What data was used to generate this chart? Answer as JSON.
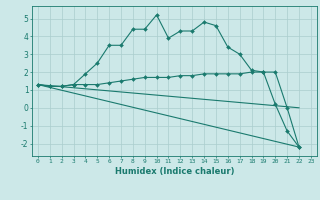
{
  "xlabel": "Humidex (Indice chaleur)",
  "bg_color": "#cce8e8",
  "grid_color": "#aacece",
  "line_color": "#1a7a6e",
  "xlim": [
    -0.5,
    23.5
  ],
  "ylim": [
    -2.7,
    5.7
  ],
  "yticks": [
    -2,
    -1,
    0,
    1,
    2,
    3,
    4,
    5
  ],
  "xticks": [
    0,
    1,
    2,
    3,
    4,
    5,
    6,
    7,
    8,
    9,
    10,
    11,
    12,
    13,
    14,
    15,
    16,
    17,
    18,
    19,
    20,
    21,
    22,
    23
  ],
  "lines": [
    {
      "x": [
        0,
        1,
        2,
        3,
        4,
        5,
        6,
        7,
        8,
        9,
        10,
        11,
        12,
        13,
        14,
        15,
        16,
        17,
        18,
        19,
        20,
        21,
        22
      ],
      "y": [
        1.3,
        1.2,
        1.2,
        1.3,
        1.9,
        2.5,
        3.5,
        3.5,
        4.4,
        4.4,
        5.2,
        3.9,
        4.3,
        4.3,
        4.8,
        4.6,
        3.4,
        3.0,
        2.1,
        2.0,
        0.2,
        -1.3,
        -2.2
      ],
      "markers": true
    },
    {
      "x": [
        0,
        1,
        2,
        3,
        4,
        5,
        6,
        7,
        8,
        9,
        10,
        11,
        12,
        13,
        14,
        15,
        16,
        17,
        18,
        19,
        20,
        21,
        22
      ],
      "y": [
        1.3,
        1.2,
        1.2,
        1.3,
        1.3,
        1.3,
        1.4,
        1.5,
        1.6,
        1.7,
        1.7,
        1.7,
        1.8,
        1.8,
        1.9,
        1.9,
        1.9,
        1.9,
        2.0,
        2.0,
        2.0,
        0.0,
        -2.2
      ],
      "markers": true
    },
    {
      "x": [
        0,
        22
      ],
      "y": [
        1.3,
        -2.2
      ],
      "markers": false
    },
    {
      "x": [
        0,
        22
      ],
      "y": [
        1.3,
        0.0
      ],
      "markers": false
    }
  ]
}
